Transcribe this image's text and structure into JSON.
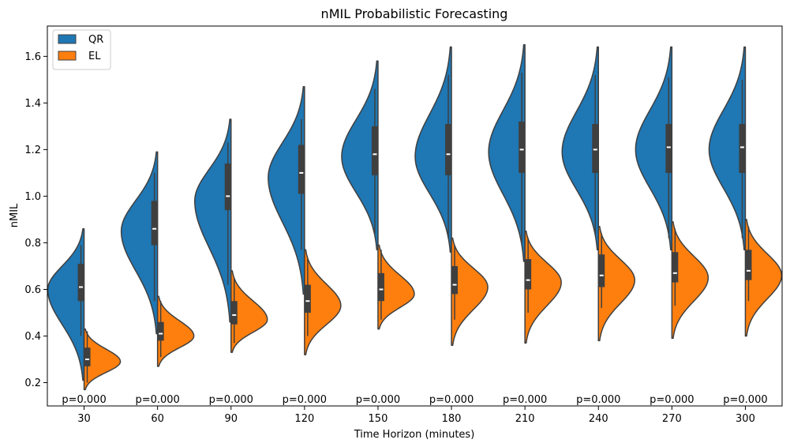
{
  "chart_data": {
    "type": "violin",
    "title": "nMIL Probabilistic Forecasting",
    "xlabel": "Time Horizon (minutes)",
    "ylabel": "nMIL",
    "ylim": [
      0.1,
      1.73
    ],
    "yticks": [
      0.2,
      0.4,
      0.6,
      0.8,
      1.0,
      1.2,
      1.4,
      1.6
    ],
    "ytick_labels": [
      "0.2",
      "0.4",
      "0.6",
      "0.8",
      "1.0",
      "1.2",
      "1.4",
      "1.6"
    ],
    "categories": [
      "30",
      "60",
      "90",
      "120",
      "150",
      "180",
      "210",
      "240",
      "270",
      "300"
    ],
    "legend": {
      "placement": "top-left"
    },
    "grid": false,
    "series": [
      {
        "name": "QR",
        "color": "#1f77b4",
        "side": "left",
        "stats": [
          {
            "min": 0.21,
            "q1": 0.55,
            "median": 0.61,
            "q3": 0.71,
            "max": 0.86,
            "mode": 0.6,
            "whisker_low": 0.4,
            "whisker_high": 0.79
          },
          {
            "min": 0.41,
            "q1": 0.79,
            "median": 0.86,
            "q3": 0.98,
            "max": 1.19,
            "mode": 0.85,
            "whisker_low": 0.55,
            "whisker_high": 1.1
          },
          {
            "min": 0.46,
            "q1": 0.94,
            "median": 1.0,
            "q3": 1.14,
            "max": 1.33,
            "mode": 0.98,
            "whisker_low": 0.62,
            "whisker_high": 1.23
          },
          {
            "min": 0.58,
            "q1": 1.01,
            "median": 1.1,
            "q3": 1.22,
            "max": 1.47,
            "mode": 1.08,
            "whisker_low": 0.77,
            "whisker_high": 1.33
          },
          {
            "min": 0.77,
            "q1": 1.09,
            "median": 1.18,
            "q3": 1.3,
            "max": 1.58,
            "mode": 1.17,
            "whisker_low": 0.84,
            "whisker_high": 1.46
          },
          {
            "min": 0.76,
            "q1": 1.09,
            "median": 1.18,
            "q3": 1.31,
            "max": 1.64,
            "mode": 1.17,
            "whisker_low": 0.82,
            "whisker_high": 1.52
          },
          {
            "min": 0.72,
            "q1": 1.1,
            "median": 1.2,
            "q3": 1.32,
            "max": 1.65,
            "mode": 1.19,
            "whisker_low": 0.8,
            "whisker_high": 1.53
          },
          {
            "min": 0.77,
            "q1": 1.1,
            "median": 1.2,
            "q3": 1.31,
            "max": 1.64,
            "mode": 1.19,
            "whisker_low": 0.83,
            "whisker_high": 1.52
          },
          {
            "min": 0.77,
            "q1": 1.1,
            "median": 1.21,
            "q3": 1.31,
            "max": 1.64,
            "mode": 1.2,
            "whisker_low": 0.82,
            "whisker_high": 1.51
          },
          {
            "min": 0.77,
            "q1": 1.1,
            "median": 1.21,
            "q3": 1.31,
            "max": 1.64,
            "mode": 1.2,
            "whisker_low": 0.82,
            "whisker_high": 1.5
          }
        ]
      },
      {
        "name": "EL",
        "color": "#ff7f0e",
        "side": "right",
        "stats": [
          {
            "min": 0.17,
            "q1": 0.27,
            "median": 0.3,
            "q3": 0.35,
            "max": 0.43,
            "mode": 0.29,
            "whisker_low": 0.2,
            "whisker_high": 0.42
          },
          {
            "min": 0.27,
            "q1": 0.38,
            "median": 0.41,
            "q3": 0.46,
            "max": 0.57,
            "mode": 0.4,
            "whisker_low": 0.31,
            "whisker_high": 0.55
          },
          {
            "min": 0.33,
            "q1": 0.45,
            "median": 0.49,
            "q3": 0.55,
            "max": 0.68,
            "mode": 0.47,
            "whisker_low": 0.37,
            "whisker_high": 0.65
          },
          {
            "min": 0.32,
            "q1": 0.5,
            "median": 0.55,
            "q3": 0.62,
            "max": 0.77,
            "mode": 0.53,
            "whisker_low": 0.4,
            "whisker_high": 0.73
          },
          {
            "min": 0.43,
            "q1": 0.55,
            "median": 0.6,
            "q3": 0.67,
            "max": 0.79,
            "mode": 0.58,
            "whisker_low": 0.47,
            "whisker_high": 0.77
          },
          {
            "min": 0.36,
            "q1": 0.58,
            "median": 0.62,
            "q3": 0.7,
            "max": 0.82,
            "mode": 0.61,
            "whisker_low": 0.47,
            "whisker_high": 0.79
          },
          {
            "min": 0.37,
            "q1": 0.6,
            "median": 0.64,
            "q3": 0.73,
            "max": 0.85,
            "mode": 0.63,
            "whisker_low": 0.5,
            "whisker_high": 0.82
          },
          {
            "min": 0.38,
            "q1": 0.61,
            "median": 0.66,
            "q3": 0.75,
            "max": 0.87,
            "mode": 0.64,
            "whisker_low": 0.52,
            "whisker_high": 0.84
          },
          {
            "min": 0.39,
            "q1": 0.63,
            "median": 0.67,
            "q3": 0.76,
            "max": 0.89,
            "mode": 0.65,
            "whisker_low": 0.53,
            "whisker_high": 0.86
          },
          {
            "min": 0.4,
            "q1": 0.64,
            "median": 0.68,
            "q3": 0.77,
            "max": 0.9,
            "mode": 0.66,
            "whisker_low": 0.55,
            "whisker_high": 0.87
          }
        ]
      }
    ],
    "annotations": [
      "p=0.000",
      "p=0.000",
      "p=0.000",
      "p=0.000",
      "p=0.000",
      "p=0.000",
      "p=0.000",
      "p=0.000",
      "p=0.000",
      "p=0.000"
    ]
  }
}
